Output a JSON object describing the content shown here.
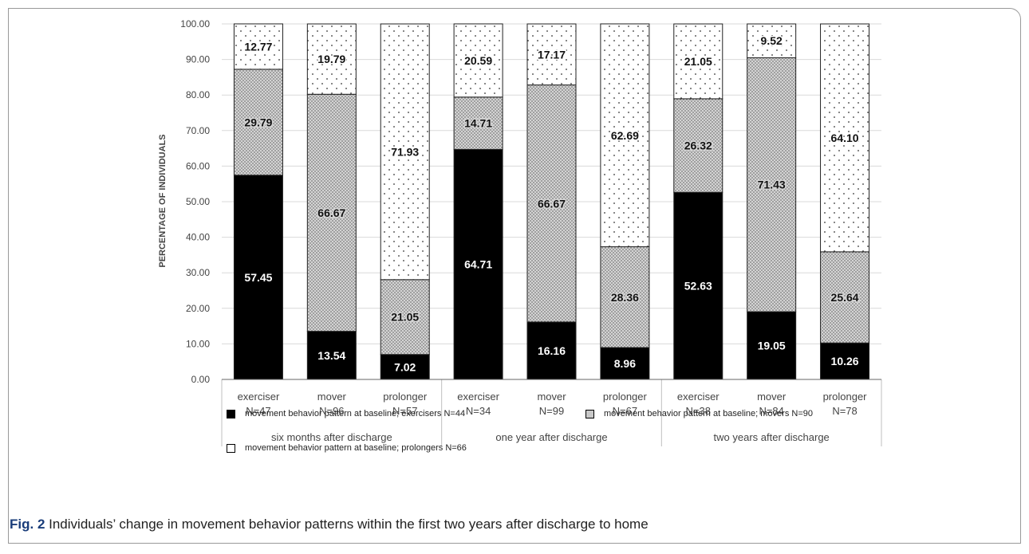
{
  "chart_data": {
    "type": "bar",
    "stacked": true,
    "ylabel": "PERCENTAGE OF INDIVIDUALS",
    "ylim": [
      0,
      100
    ],
    "yticks": [
      "0.00",
      "10.00",
      "20.00",
      "30.00",
      "40.00",
      "50.00",
      "60.00",
      "70.00",
      "80.00",
      "90.00",
      "100.00"
    ],
    "grid": true,
    "groups": [
      {
        "label": "six months after discharge",
        "categories": [
          {
            "name": "exerciser",
            "n": "N=47"
          },
          {
            "name": "mover",
            "n": "N=96"
          },
          {
            "name": "prolonger",
            "n": "N=57"
          }
        ]
      },
      {
        "label": "one year after discharge",
        "categories": [
          {
            "name": "exerciser",
            "n": "N=34"
          },
          {
            "name": "mover",
            "n": "N=99"
          },
          {
            "name": "prolonger",
            "n": "N=67"
          }
        ]
      },
      {
        "label": "two years after discharge",
        "categories": [
          {
            "name": "exerciser",
            "n": "N=38"
          },
          {
            "name": "mover",
            "n": "N=84"
          },
          {
            "name": "prolonger",
            "n": "N=78"
          }
        ]
      }
    ],
    "series": [
      {
        "name": "movement behavior pattern at baseline; exercisers N=44",
        "pattern": "solid",
        "color": "#000000",
        "values": [
          57.45,
          13.54,
          7.02,
          64.71,
          16.16,
          8.96,
          52.63,
          19.05,
          10.26
        ],
        "labels": [
          "57.45",
          "13.54",
          "7.02",
          "64.71",
          "16.16",
          "8.96",
          "52.63",
          "19.05",
          "10.26"
        ]
      },
      {
        "name": "movement behavior pattern at baseline; movers N=90",
        "pattern": "dense-dots",
        "color": "#c8c8c8",
        "values": [
          29.79,
          66.67,
          21.05,
          14.71,
          66.67,
          28.36,
          26.32,
          71.43,
          25.64
        ],
        "labels": [
          "29.79",
          "66.67",
          "21.05",
          "14.71",
          "66.67",
          "28.36",
          "26.32",
          "71.43",
          "25.64"
        ]
      },
      {
        "name": "movement behavior pattern at baseline; prolongers N=66",
        "pattern": "sparse-dots",
        "color": "#ffffff",
        "values": [
          12.77,
          19.79,
          71.93,
          20.59,
          17.17,
          62.69,
          21.05,
          9.52,
          64.1
        ],
        "labels": [
          "12.77",
          "19.79",
          "71.93",
          "20.59",
          "17.17",
          "62.69",
          "21.05",
          "9.52",
          "64.10"
        ]
      }
    ],
    "legend": "bottom"
  },
  "caption": {
    "label": "Fig. 2",
    "text": " Individuals’ change in movement behavior patterns within the first two years after discharge to home"
  }
}
